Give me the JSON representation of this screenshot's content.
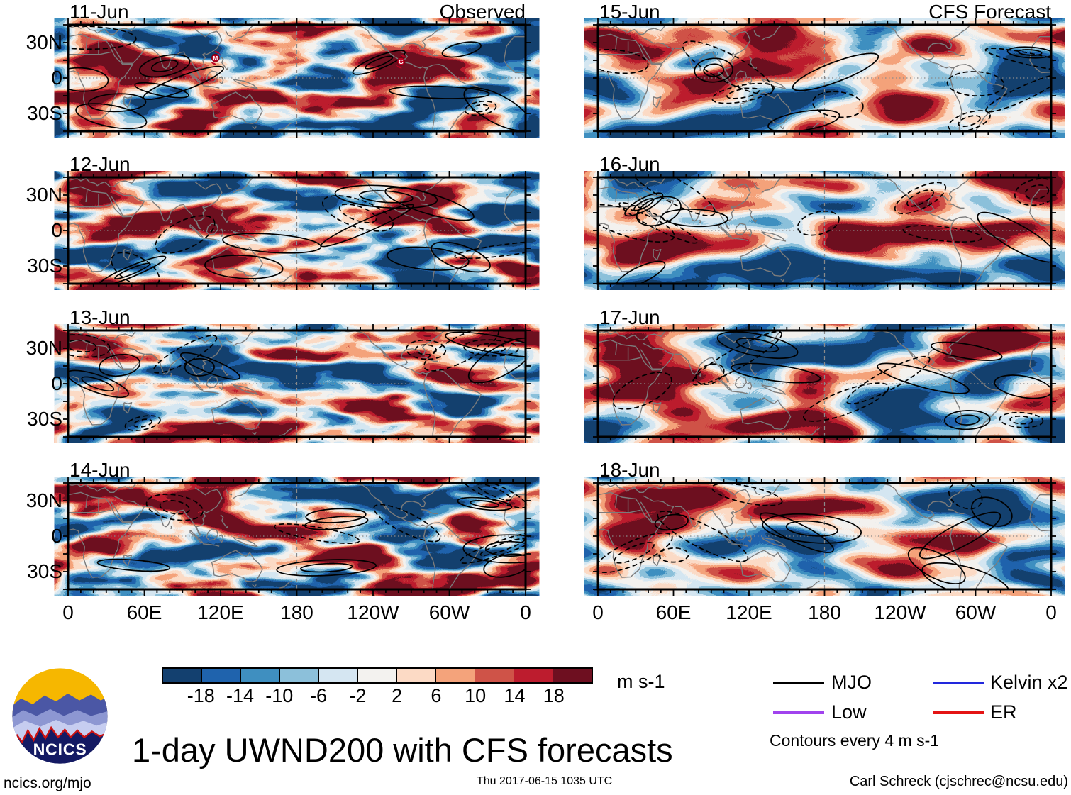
{
  "title": "1-day UWND200 with CFS forecasts",
  "column_headers": {
    "left": "Observed",
    "right": "CFS Forecast"
  },
  "panels": [
    {
      "date": "11-Jun",
      "column": "left",
      "corner_label": "Observed",
      "storm_markers": [
        {
          "label": "M",
          "lon": 116,
          "lat": 17
        },
        {
          "label": "G",
          "lon": 262,
          "lat": 14
        }
      ]
    },
    {
      "date": "12-Jun",
      "column": "left",
      "corner_label": ""
    },
    {
      "date": "13-Jun",
      "column": "left",
      "corner_label": ""
    },
    {
      "date": "14-Jun",
      "column": "left",
      "corner_label": ""
    },
    {
      "date": "15-Jun",
      "column": "right",
      "corner_label": "CFS Forecast"
    },
    {
      "date": "16-Jun",
      "column": "right",
      "corner_label": ""
    },
    {
      "date": "17-Jun",
      "column": "right",
      "corner_label": ""
    },
    {
      "date": "18-Jun",
      "column": "right",
      "corner_label": ""
    }
  ],
  "y_axis_labels": [
    "30N",
    "0",
    "30S"
  ],
  "x_axis_labels": [
    "0",
    "60E",
    "120E",
    "180",
    "120W",
    "60W",
    "0"
  ],
  "colorbar": {
    "unit": "m s-1",
    "tick_labels": [
      "-18",
      "-14",
      "-10",
      "-6",
      "-2",
      "2",
      "6",
      "10",
      "14",
      "18"
    ],
    "colors": [
      "#13406f",
      "#1f63ad",
      "#3f8fc0",
      "#8cc0da",
      "#d5e6f2",
      "#f3f2ef",
      "#fcdac5",
      "#f4a37b",
      "#cf5348",
      "#bd1c2e",
      "#6e0f20"
    ]
  },
  "legend": {
    "items": [
      {
        "label": "MJO",
        "color": "#000000"
      },
      {
        "label": "Kelvin x2",
        "color": "#2228dd"
      },
      {
        "label": "Low",
        "color": "#a143ee"
      },
      {
        "label": "ER",
        "color": "#e41414"
      }
    ],
    "note": "Contours every 4 m s-1"
  },
  "logo_text": "NCICS",
  "footer": {
    "left": "ncics.org/mjo",
    "center": "Thu 2017-06-15 1035 UTC",
    "right": "Carl Schreck (cjschrec@ncsu.edu)"
  },
  "chart_data": {
    "type": "heatmap",
    "variable": "UWND200 (200-hPa zonal wind anomaly)",
    "unit": "m s-1",
    "color_scale_bounds": [
      -18,
      -14,
      -10,
      -6,
      -2,
      2,
      6,
      10,
      14,
      18
    ],
    "contour_interval_note": "Contours every 4 m s-1",
    "lat_tick_labels": [
      "30N",
      "0",
      "30S"
    ],
    "lon_tick_labels": [
      "0",
      "60E",
      "120E",
      "180",
      "120W",
      "60W",
      "0"
    ],
    "panels": [
      {
        "date": "11-Jun",
        "source": "Observed"
      },
      {
        "date": "12-Jun",
        "source": "Observed"
      },
      {
        "date": "13-Jun",
        "source": "Observed"
      },
      {
        "date": "14-Jun",
        "source": "Observed"
      },
      {
        "date": "15-Jun",
        "source": "CFS Forecast"
      },
      {
        "date": "16-Jun",
        "source": "CFS Forecast"
      },
      {
        "date": "17-Jun",
        "source": "CFS Forecast"
      },
      {
        "date": "18-Jun",
        "source": "CFS Forecast"
      }
    ],
    "wave_legend": [
      "MJO",
      "Kelvin x2",
      "Low",
      "ER"
    ]
  }
}
